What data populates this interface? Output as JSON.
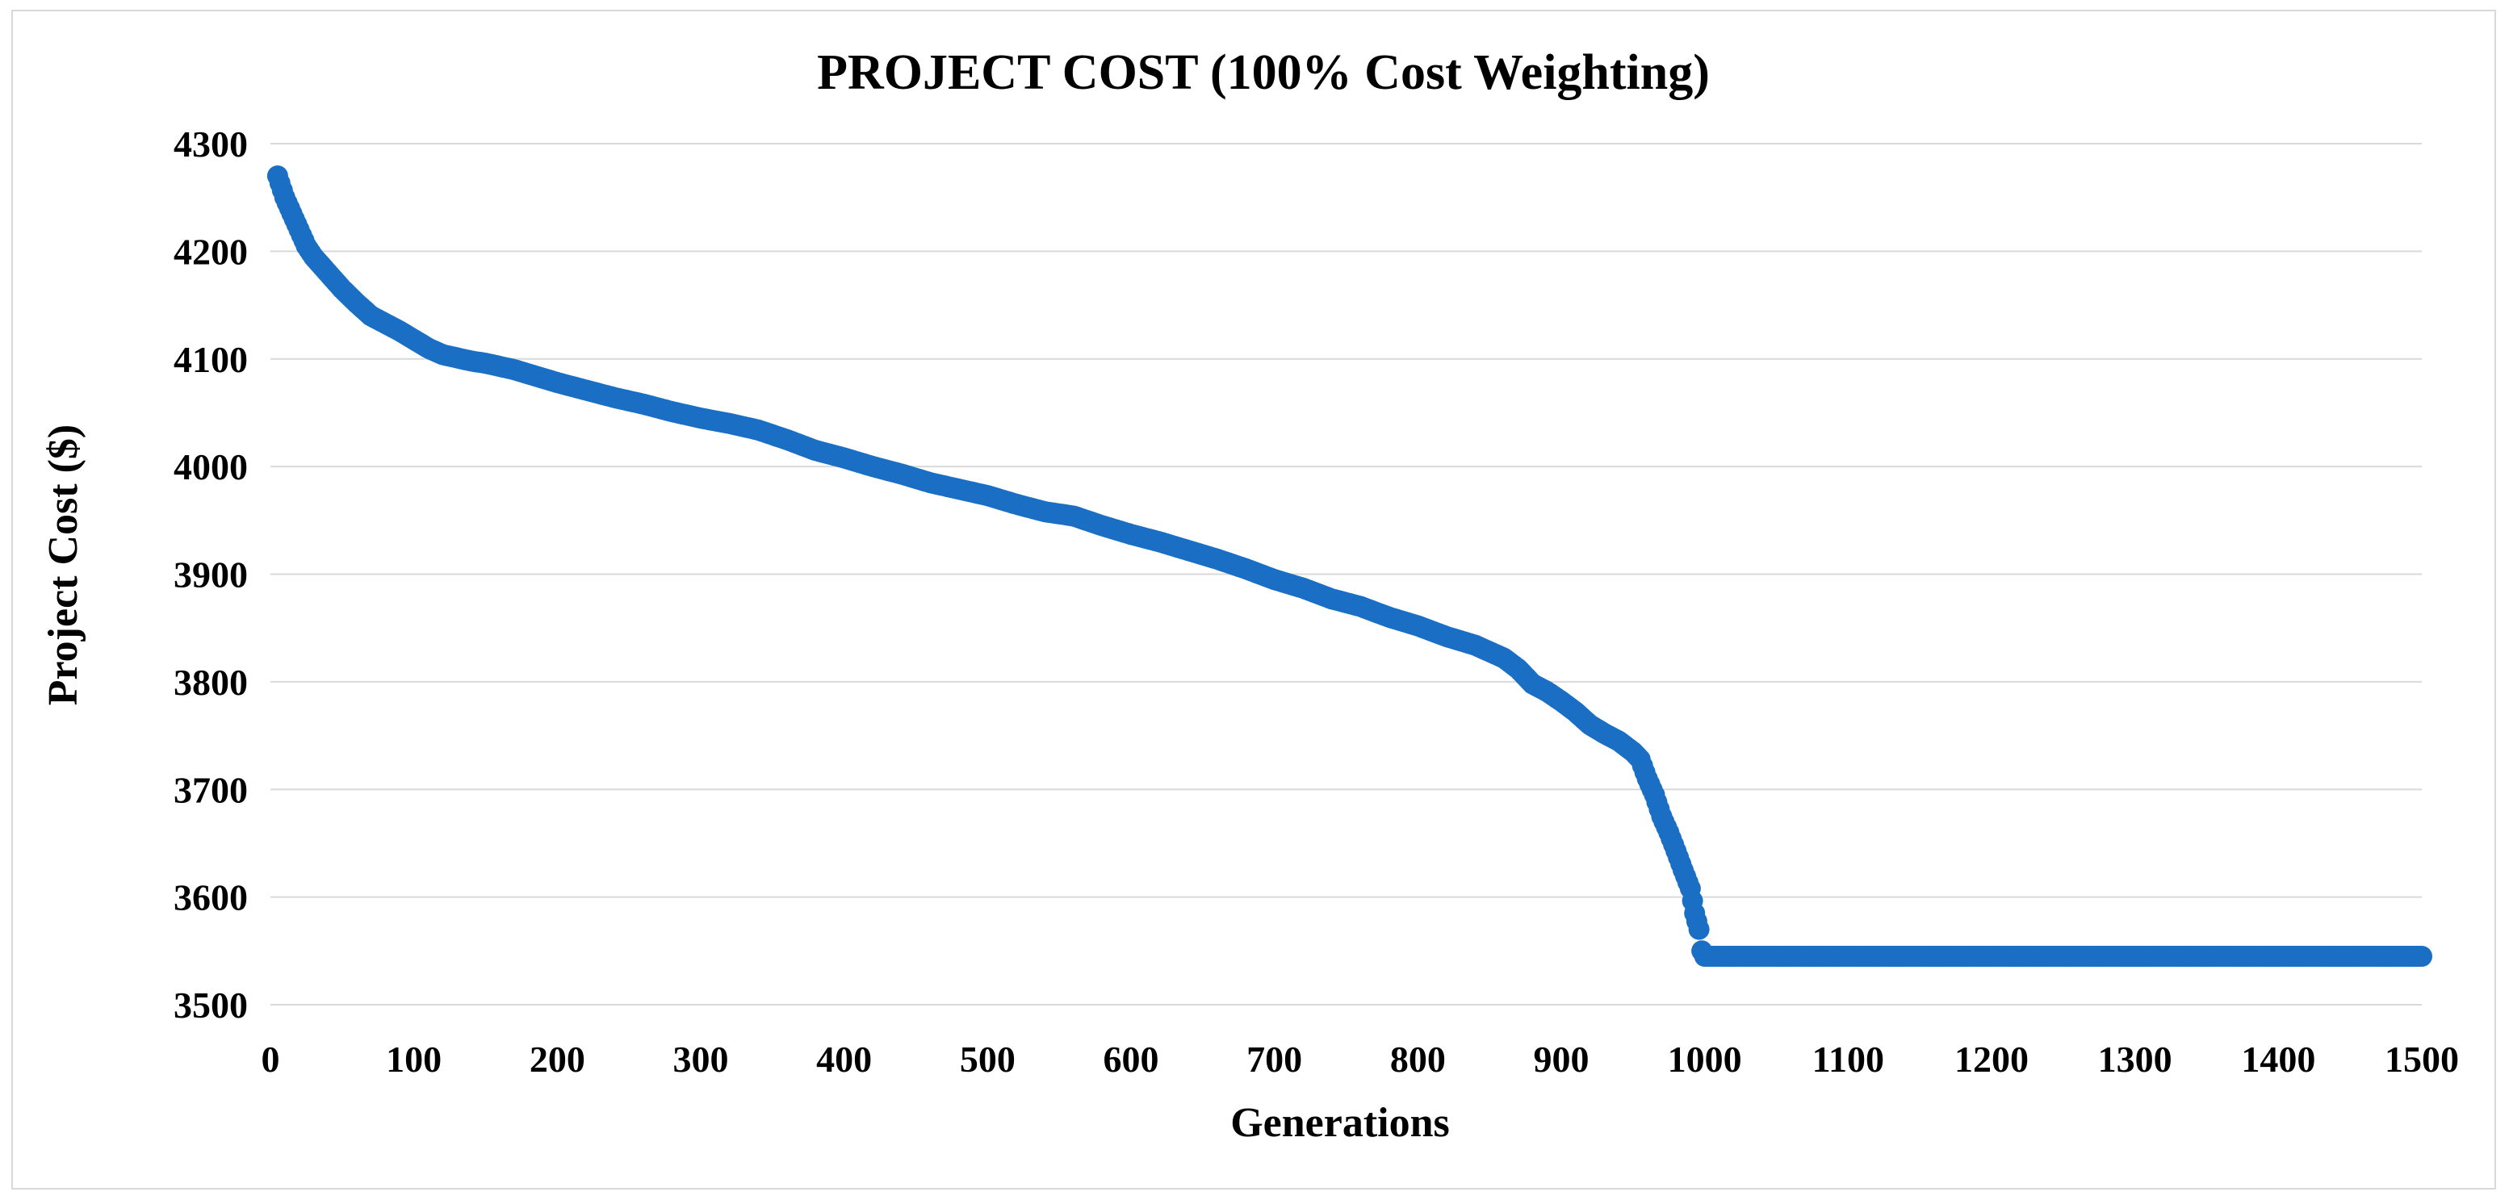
{
  "chart_data": {
    "type": "scatter",
    "title": "PROJECT COST (100% Cost Weighting)",
    "xlabel": "Generations",
    "ylabel": "Project Cost ($)",
    "xlim": [
      0,
      1500
    ],
    "ylim": [
      3500,
      4300
    ],
    "xticks": [
      "0",
      "100",
      "200",
      "300",
      "400",
      "500",
      "600",
      "700",
      "800",
      "900",
      "1000",
      "1100",
      "1200",
      "1300",
      "1400",
      "1500"
    ],
    "yticks": [
      "3500",
      "3600",
      "3700",
      "3800",
      "3900",
      "4000",
      "4100",
      "4200",
      "4300"
    ],
    "grid": "horizontal",
    "series": [
      {
        "name": "Project Cost",
        "color": "#1a6fc4",
        "x": [
          5,
          10,
          15,
          20,
          25,
          30,
          40,
          50,
          60,
          70,
          80,
          90,
          100,
          110,
          120,
          130,
          140,
          150,
          160,
          170,
          180,
          190,
          200,
          220,
          240,
          260,
          280,
          300,
          320,
          340,
          360,
          380,
          400,
          420,
          440,
          460,
          480,
          500,
          520,
          540,
          560,
          580,
          600,
          620,
          640,
          660,
          680,
          700,
          720,
          740,
          760,
          780,
          800,
          820,
          840,
          860,
          870,
          880,
          890,
          900,
          910,
          920,
          930,
          940,
          950,
          955,
          960,
          965,
          970,
          975,
          980,
          985,
          990,
          993,
          996,
          998,
          1000,
          1050,
          1100,
          1150,
          1200,
          1250,
          1300,
          1350,
          1400,
          1450,
          1500
        ],
        "y": [
          4270,
          4250,
          4235,
          4220,
          4205,
          4195,
          4180,
          4165,
          4152,
          4140,
          4133,
          4126,
          4118,
          4110,
          4104,
          4101,
          4098,
          4096,
          4093,
          4090,
          4086,
          4082,
          4078,
          4071,
          4064,
          4058,
          4051,
          4045,
          4040,
          4034,
          4025,
          4015,
          4008,
          4000,
          3993,
          3985,
          3979,
          3973,
          3965,
          3958,
          3954,
          3945,
          3937,
          3930,
          3922,
          3914,
          3905,
          3895,
          3887,
          3877,
          3870,
          3860,
          3852,
          3842,
          3834,
          3822,
          3812,
          3798,
          3791,
          3782,
          3772,
          3760,
          3752,
          3745,
          3735,
          3728,
          3710,
          3695,
          3675,
          3660,
          3643,
          3625,
          3608,
          3585,
          3570,
          3550,
          3545,
          3545,
          3545,
          3545,
          3545,
          3545,
          3545,
          3545,
          3545,
          3545,
          3545
        ]
      }
    ]
  }
}
